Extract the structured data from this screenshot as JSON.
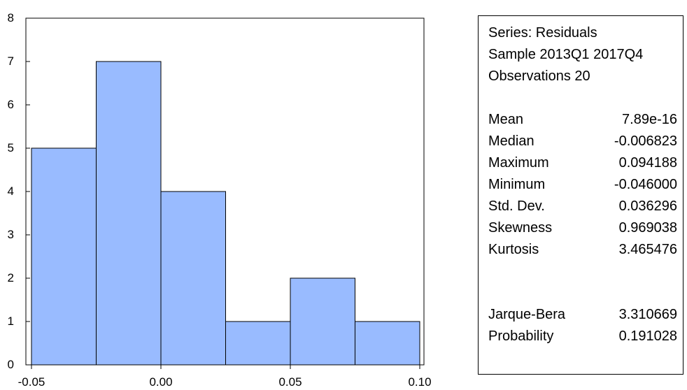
{
  "chart_data": {
    "type": "bar",
    "bins": [
      {
        "from": -0.05,
        "to": -0.025,
        "count": 5
      },
      {
        "from": -0.025,
        "to": 0.0,
        "count": 7
      },
      {
        "from": 0.0,
        "to": 0.025,
        "count": 4
      },
      {
        "from": 0.025,
        "to": 0.05,
        "count": 1
      },
      {
        "from": 0.05,
        "to": 0.075,
        "count": 2
      },
      {
        "from": 0.075,
        "to": 0.1,
        "count": 1
      }
    ],
    "xlim": [
      -0.05,
      0.1
    ],
    "ylim": [
      0,
      8
    ],
    "x_ticks": [
      "-0.05",
      "0.00",
      "0.05",
      "0.10"
    ],
    "x_tick_values": [
      -0.05,
      0.0,
      0.05,
      0.1
    ],
    "y_ticks": [
      "0",
      "1",
      "2",
      "3",
      "4",
      "5",
      "6",
      "7",
      "8"
    ],
    "y_tick_values": [
      0,
      1,
      2,
      3,
      4,
      5,
      6,
      7,
      8
    ],
    "bar_color": "#99bbff",
    "edge_color": "#000000",
    "grid": false
  },
  "stats": {
    "header": [
      "Series: Residuals",
      "Sample 2013Q1 2017Q4",
      "Observations 20"
    ],
    "rows": [
      {
        "label": "Mean",
        "value": "7.89e-16"
      },
      {
        "label": "Median",
        "value": "-0.006823"
      },
      {
        "label": "Maximum",
        "value": "0.094188"
      },
      {
        "label": "Minimum",
        "value": "-0.046000"
      },
      {
        "label": "Std. Dev.",
        "value": "0.036296"
      },
      {
        "label": "Skewness",
        "value": "0.969038"
      },
      {
        "label": "Kurtosis",
        "value": "3.465476"
      }
    ],
    "tests": [
      {
        "label": "Jarque-Bera",
        "value": "3.310669"
      },
      {
        "label": "Probability",
        "value": "0.191028"
      }
    ]
  }
}
